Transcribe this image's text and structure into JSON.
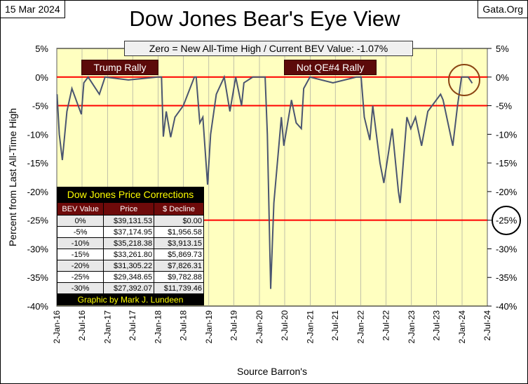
{
  "header": {
    "date": "15 Mar 2024",
    "site": "Gata.Org",
    "title": "Dow Jones Bear's Eye View",
    "zero_note": "Zero = New All-Time High / Current BEV Value:  -1.07%"
  },
  "annotations": {
    "rally1": "Trump Rally",
    "rally2": "Not QE#4 Rally"
  },
  "table": {
    "title": "Dow Jones Price Corrections",
    "headers": [
      "BEV Value",
      "Price",
      "$ Decline"
    ],
    "rows": [
      [
        "0%",
        "$39,131.53",
        "$0.00"
      ],
      [
        "-5%",
        "$37,174.95",
        "$1,956.58"
      ],
      [
        "-10%",
        "$35,218.38",
        "$3,913.15"
      ],
      [
        "-15%",
        "$33,261.80",
        "$5,869.73"
      ],
      [
        "-20%",
        "$31,305.22",
        "$7,826.31"
      ],
      [
        "-25%",
        "$29,348.65",
        "$9,782.88"
      ],
      [
        "-30%",
        "$27,392.07",
        "$11,739.46"
      ]
    ],
    "footer": "Graphic by Mark J. Lundeen"
  },
  "chart_data": {
    "type": "line",
    "title": "Dow Jones Bear's Eye View",
    "xlabel": "Source Barron's",
    "ylabel": "Percent from Last All-Time High",
    "ylim": [
      -40,
      5
    ],
    "yticks": [
      "5%",
      "0%",
      "-5%",
      "-10%",
      "-15%",
      "-20%",
      "-25%",
      "-30%",
      "-35%",
      "-40%"
    ],
    "xticks": [
      "2-Jan-16",
      "2-Jul-16",
      "2-Jan-17",
      "2-Jul-17",
      "2-Jan-18",
      "2-Jul-18",
      "2-Jan-19",
      "2-Jul-19",
      "2-Jan-20",
      "2-Jul-20",
      "2-Jan-21",
      "2-Jul-21",
      "2-Jan-22",
      "2-Jul-22",
      "2-Jan-23",
      "2-Jul-23",
      "2-Jan-24",
      "2-Jul-24"
    ],
    "reference_lines": [
      0,
      -5,
      -25
    ],
    "line_color": "#4a5570",
    "ref_color": "#ff0000",
    "background": "#ffffc0",
    "series": [
      {
        "x": [
          "2016-01-04",
          "2016-01-20",
          "2016-02-11",
          "2016-03-15",
          "2016-04-20",
          "2016-06-27",
          "2016-07-15",
          "2016-08-15",
          "2016-11-04",
          "2016-12-15",
          "2017-06-01",
          "2017-12-29",
          "2018-01-26",
          "2018-02-08",
          "2018-03-01",
          "2018-04-02",
          "2018-05-03",
          "2018-07-02",
          "2018-09-20",
          "2018-10-03",
          "2018-10-29",
          "2018-11-20",
          "2018-12-24",
          "2019-01-15",
          "2019-02-25",
          "2019-04-23",
          "2019-06-03",
          "2019-07-15",
          "2019-08-26",
          "2019-09-12",
          "2019-11-15",
          "2020-02-12",
          "2020-02-28",
          "2020-03-23",
          "2020-04-15",
          "2020-06-08",
          "2020-06-26",
          "2020-08-20",
          "2020-09-23",
          "2020-10-30",
          "2020-11-16",
          "2020-12-31",
          "2021-06-15",
          "2021-12-01",
          "2022-01-04",
          "2022-01-27",
          "2022-03-08",
          "2022-03-29",
          "2022-05-20",
          "2022-06-17",
          "2022-08-16",
          "2022-09-30",
          "2022-10-12",
          "2022-11-30",
          "2022-12-28",
          "2023-01-31",
          "2023-03-16",
          "2023-04-30",
          "2023-07-31",
          "2023-08-18",
          "2023-10-27",
          "2023-11-30",
          "2023-12-29",
          "2024-02-15",
          "2024-03-15"
        ],
        "values": [
          -3,
          -10,
          -14.5,
          -6,
          -2,
          -6.5,
          -1,
          0,
          -3,
          0,
          -0.5,
          0,
          0,
          -10.4,
          -6,
          -10.5,
          -7,
          -5,
          0,
          0,
          -8,
          -7,
          -18.8,
          -10,
          -3,
          0,
          -6,
          0,
          -5,
          -1,
          0,
          0,
          -10,
          -37,
          -22,
          -7,
          -12,
          -4,
          -8,
          -9,
          -2,
          0,
          -1,
          0,
          0,
          -7,
          -11,
          -5,
          -15,
          -18.5,
          -9,
          -20,
          -22,
          -7,
          -9,
          -7,
          -12,
          -6,
          -3,
          -4,
          -12,
          -5,
          0,
          0,
          -1.07
        ]
      }
    ]
  }
}
